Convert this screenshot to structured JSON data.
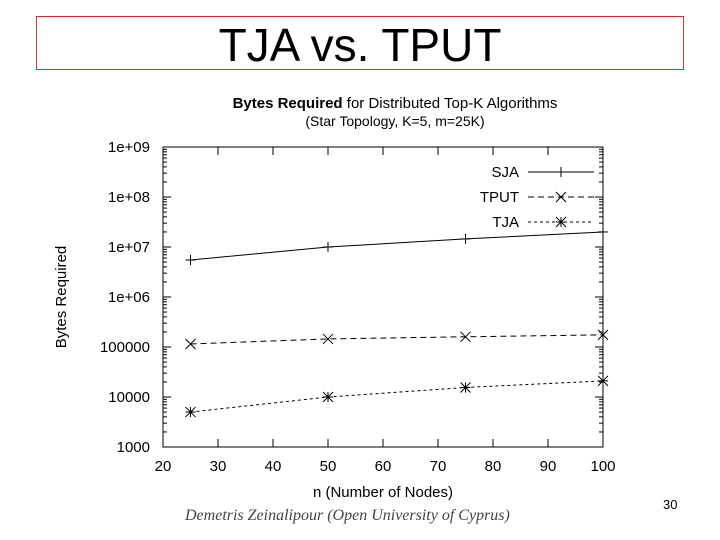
{
  "slide": {
    "title": "TJA vs. TPUT",
    "footer": "Demetris Zeinalipour  (Open University of Cyprus)",
    "page_number": "30",
    "title_border_color": "#cc3333"
  },
  "chart_data": {
    "type": "line",
    "title_bold": "Bytes Required",
    "title_rest": " for Distributed Top-K Algorithms",
    "subtitle": "(Star Topology, K=5, m=25K)",
    "xlabel": "n (Number of Nodes)",
    "ylabel": "Bytes Required",
    "xlim": [
      20,
      100
    ],
    "ylim": [
      1000,
      1000000000
    ],
    "yscale": "log",
    "xticks": [
      20,
      30,
      40,
      50,
      60,
      70,
      80,
      90,
      100
    ],
    "yticks": [
      1000,
      10000,
      100000,
      1000000,
      10000000,
      100000000,
      1000000000
    ],
    "ytick_labels": [
      "1000",
      "10000",
      "100000",
      "1e+06",
      "1e+07",
      "1e+08",
      "1e+09"
    ],
    "grid": false,
    "legend_position": "top-right",
    "series": [
      {
        "name": "SJA",
        "marker": "plus",
        "dash": "solid",
        "x": [
          25,
          50,
          75,
          100
        ],
        "y": [
          5500000,
          10000000,
          14500000,
          20000000
        ]
      },
      {
        "name": "TPUT",
        "marker": "x",
        "dash": "dashed",
        "x": [
          25,
          50,
          75,
          100
        ],
        "y": [
          115000,
          145000,
          160000,
          175000
        ]
      },
      {
        "name": "TJA",
        "marker": "star",
        "dash": "dotted",
        "x": [
          25,
          50,
          75,
          100
        ],
        "y": [
          5000,
          10000,
          15500,
          21000
        ]
      }
    ]
  }
}
